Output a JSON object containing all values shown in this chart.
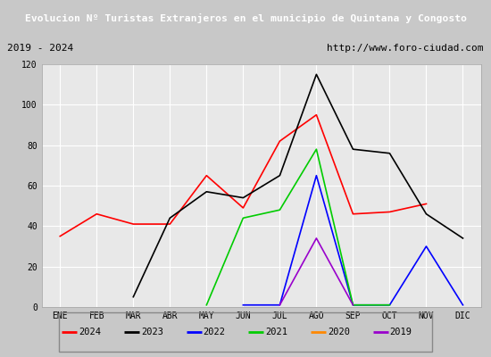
{
  "title": "Evolucion Nº Turistas Extranjeros en el municipio de Quintana y Congosto",
  "subtitle_left": "2019 - 2024",
  "subtitle_right": "http://www.foro-ciudad.com",
  "months": [
    "ENE",
    "FEB",
    "MAR",
    "ABR",
    "MAY",
    "JUN",
    "JUL",
    "AGO",
    "SEP",
    "OCT",
    "NOV",
    "DIC"
  ],
  "series": {
    "2024": {
      "color": "#ff0000",
      "data": [
        35,
        46,
        41,
        41,
        65,
        49,
        82,
        95,
        46,
        47,
        51,
        null
      ]
    },
    "2023": {
      "color": "#000000",
      "data": [
        null,
        null,
        5,
        44,
        57,
        54,
        65,
        115,
        78,
        76,
        46,
        34
      ]
    },
    "2022": {
      "color": "#0000ff",
      "data": [
        null,
        null,
        null,
        null,
        null,
        1,
        1,
        65,
        1,
        1,
        30,
        1
      ]
    },
    "2021": {
      "color": "#00cc00",
      "data": [
        null,
        null,
        null,
        null,
        1,
        44,
        48,
        78,
        1,
        1,
        null,
        null
      ]
    },
    "2020": {
      "color": "#ff8800",
      "data": [
        null,
        null,
        null,
        null,
        null,
        null,
        null,
        null,
        null,
        null,
        null,
        null
      ]
    },
    "2019": {
      "color": "#9900cc",
      "data": [
        null,
        null,
        null,
        null,
        null,
        null,
        1,
        34,
        1,
        null,
        null,
        null
      ]
    }
  },
  "ylim": [
    0,
    120
  ],
  "yticks": [
    0,
    20,
    40,
    60,
    80,
    100,
    120
  ],
  "outer_background": "#c8c8c8",
  "title_background": "#4477aa",
  "title_color": "#ffffff",
  "plot_background": "#e8e8e8",
  "grid_color": "#ffffff",
  "subtitle_background": "#d8d8d8",
  "legend_background": "#f0f0f0",
  "legend_border": "#888888"
}
